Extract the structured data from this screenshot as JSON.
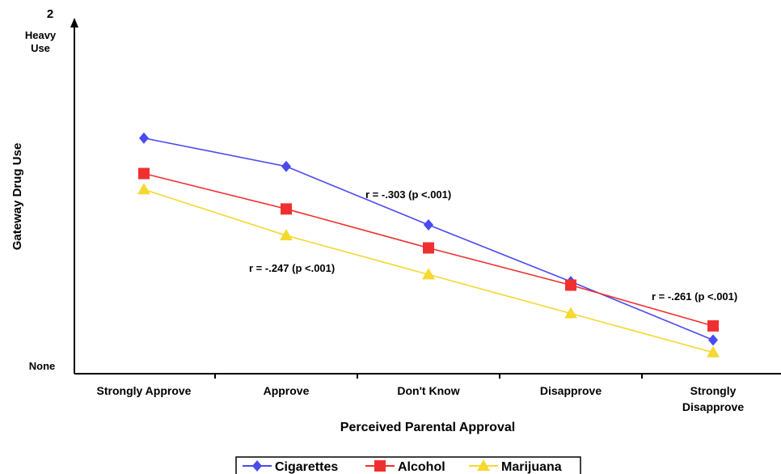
{
  "chart_data": {
    "type": "line",
    "title": "",
    "xlabel": "Perceived Parental Approval",
    "ylabel": "Gateway Drug Use",
    "categories": [
      "Strongly Approve",
      "Approve",
      "Don't Know",
      "Disapprove",
      "Strongly Disapprove"
    ],
    "ylim": [
      0,
      2
    ],
    "y_tick_value": "2",
    "y_top_label": "Heavy Use",
    "y_bottom_label": "None",
    "grid": false,
    "legend_position": "bottom",
    "series": [
      {
        "name": "Cigarettes",
        "values": [
          1.33,
          1.17,
          0.84,
          0.52,
          0.19
        ],
        "color": "#4a4af0",
        "marker": "diamond"
      },
      {
        "name": "Alcohol",
        "values": [
          1.13,
          0.93,
          0.71,
          0.5,
          0.27
        ],
        "color": "#f03030",
        "marker": "square"
      },
      {
        "name": "Marijuana",
        "values": [
          1.04,
          0.78,
          0.56,
          0.34,
          0.12
        ],
        "color": "#f5d830",
        "marker": "triangle"
      }
    ],
    "annotations": [
      {
        "text": "r = -.303 (p <.001)"
      },
      {
        "text": "r = -.247 (p <.001)"
      },
      {
        "text": "r = -.261 (p <.001)"
      }
    ]
  }
}
